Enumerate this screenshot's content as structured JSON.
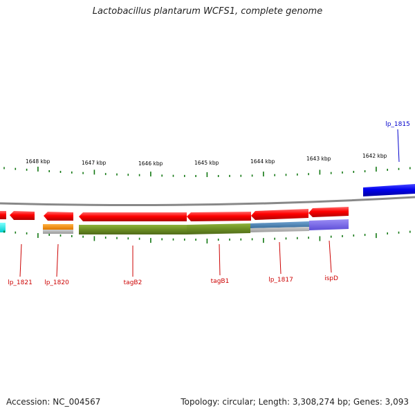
{
  "title": "Lactobacillus plantarum WCFS1, complete genome",
  "footer": {
    "accession": "Accession: NC_004567",
    "summary": "Topology: circular; Length: 3,308,274 bp; Genes: 3,093"
  },
  "scale_labels": [
    "1648 kbp",
    "1647 kbp",
    "1646 kbp",
    "1645 kbp",
    "1644 kbp",
    "1643 kbp",
    "1642 kbp"
  ],
  "gene_labels": [
    {
      "text": "lp_1821",
      "color": "#cc0000"
    },
    {
      "text": "lp_1820",
      "color": "#cc0000"
    },
    {
      "text": "tagB2",
      "color": "#cc0000"
    },
    {
      "text": "tagB1",
      "color": "#cc0000"
    },
    {
      "text": "lp_1817",
      "color": "#cc0000"
    },
    {
      "text": "ispD",
      "color": "#cc0000"
    },
    {
      "text": "lp_1815",
      "color": "#0000cc"
    }
  ],
  "colors": {
    "reverse_strand": "#ee0000",
    "forward_strand": "#0000ee",
    "backbone": "#888888",
    "tick": "#117711",
    "cog_green": "#6b8e23",
    "cog_orange": "#ff8c00",
    "cog_steelblue": "#4682b4",
    "cog_purple": "#7b68ee",
    "cog_cyan": "#00eeee"
  }
}
